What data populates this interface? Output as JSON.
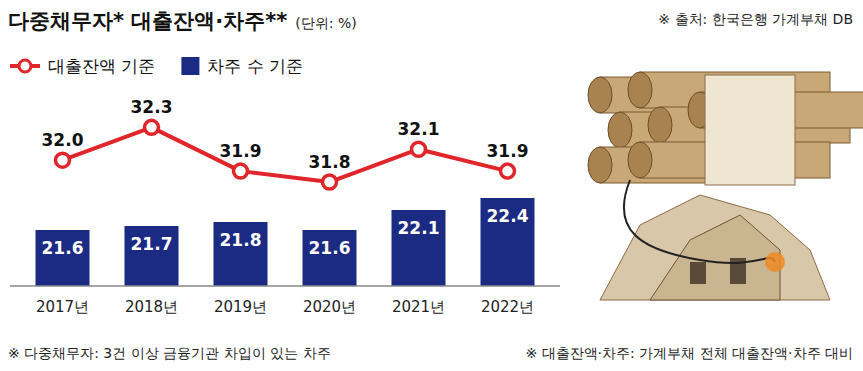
{
  "chart_data": {
    "type": "bar",
    "title": "다중채무자* 대출잔액·차주**",
    "subtitle": "(단위: %)",
    "source": "※ 출처: 한국은행 가계부채 DB",
    "notes": [
      "※ 다중채무자: 3건 이상 금융기관 차입이 있는 차주",
      "※ 대출잔액·차주: 가계부채 전체 대출잔액·차주 대비"
    ],
    "categories": [
      "2017년",
      "2018년",
      "2019년",
      "2020년",
      "2021년",
      "2022년"
    ],
    "series": [
      {
        "name": "대출잔액 기준",
        "type": "line",
        "axis": "y2",
        "color": "#e0262b",
        "marker": "circle",
        "values": [
          32.0,
          32.3,
          31.9,
          31.8,
          32.1,
          31.9
        ],
        "value_labels": [
          "32.0",
          "32.3",
          "31.9",
          "31.8",
          "32.1",
          "31.9"
        ]
      },
      {
        "name": "차주 수 기준",
        "type": "bar",
        "color": "#1b2a82",
        "values": [
          21.6,
          21.7,
          21.8,
          21.6,
          22.1,
          22.4
        ],
        "value_labels": [
          "21.6",
          "21.7",
          "21.8",
          "21.6",
          "22.1",
          "22.4"
        ]
      }
    ],
    "ylim": [
      20.2,
      24.85
    ],
    "y2lim": [
      30.85,
      32.55
    ],
    "data_labels": true,
    "tick_labels": "x",
    "grid": false,
    "legend": "top-left"
  }
}
